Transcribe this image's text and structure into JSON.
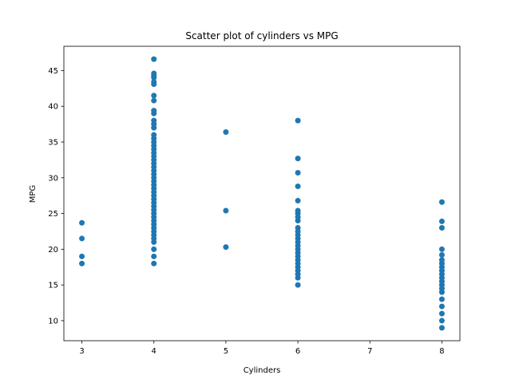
{
  "chart_data": {
    "type": "scatter",
    "title": "Scatter plot of cylinders vs MPG",
    "xlabel": "Cylinders",
    "ylabel": "MPG",
    "xlim": [
      2.75,
      8.25
    ],
    "ylim": [
      7.2,
      48.4
    ],
    "xticks": [
      3,
      4,
      5,
      6,
      7,
      8
    ],
    "yticks": [
      10,
      15,
      20,
      25,
      30,
      35,
      40,
      45
    ],
    "grid": false,
    "marker_color": "#1f77b4",
    "series": [
      {
        "points": [
          [
            3,
            18.0
          ],
          [
            3,
            19.0
          ],
          [
            3,
            21.5
          ],
          [
            3,
            23.7
          ],
          [
            4,
            18.0
          ],
          [
            4,
            19.0
          ],
          [
            4,
            20.0
          ],
          [
            4,
            21.0
          ],
          [
            4,
            21.5
          ],
          [
            4,
            22.0
          ],
          [
            4,
            22.5
          ],
          [
            4,
            23.0
          ],
          [
            4,
            23.5
          ],
          [
            4,
            24.0
          ],
          [
            4,
            24.5
          ],
          [
            4,
            25.0
          ],
          [
            4,
            25.5
          ],
          [
            4,
            26.0
          ],
          [
            4,
            26.5
          ],
          [
            4,
            27.0
          ],
          [
            4,
            27.5
          ],
          [
            4,
            28.0
          ],
          [
            4,
            28.5
          ],
          [
            4,
            29.0
          ],
          [
            4,
            29.5
          ],
          [
            4,
            30.0
          ],
          [
            4,
            30.5
          ],
          [
            4,
            31.0
          ],
          [
            4,
            31.5
          ],
          [
            4,
            32.0
          ],
          [
            4,
            32.5
          ],
          [
            4,
            33.0
          ],
          [
            4,
            33.5
          ],
          [
            4,
            34.0
          ],
          [
            4,
            34.5
          ],
          [
            4,
            35.0
          ],
          [
            4,
            35.5
          ],
          [
            4,
            36.0
          ],
          [
            4,
            37.0
          ],
          [
            4,
            37.5
          ],
          [
            4,
            38.0
          ],
          [
            4,
            39.0
          ],
          [
            4,
            39.4
          ],
          [
            4,
            40.8
          ],
          [
            4,
            41.5
          ],
          [
            4,
            43.1
          ],
          [
            4,
            43.4
          ],
          [
            4,
            44.0
          ],
          [
            4,
            44.3
          ],
          [
            4,
            44.6
          ],
          [
            4,
            46.6
          ],
          [
            5,
            20.3
          ],
          [
            5,
            25.4
          ],
          [
            5,
            36.4
          ],
          [
            6,
            15.0
          ],
          [
            6,
            16.0
          ],
          [
            6,
            16.5
          ],
          [
            6,
            17.0
          ],
          [
            6,
            17.5
          ],
          [
            6,
            18.0
          ],
          [
            6,
            18.5
          ],
          [
            6,
            19.0
          ],
          [
            6,
            19.5
          ],
          [
            6,
            20.0
          ],
          [
            6,
            20.5
          ],
          [
            6,
            21.0
          ],
          [
            6,
            21.5
          ],
          [
            6,
            22.0
          ],
          [
            6,
            22.5
          ],
          [
            6,
            23.0
          ],
          [
            6,
            24.0
          ],
          [
            6,
            24.5
          ],
          [
            6,
            25.0
          ],
          [
            6,
            25.4
          ],
          [
            6,
            26.8
          ],
          [
            6,
            28.8
          ],
          [
            6,
            30.7
          ],
          [
            6,
            32.7
          ],
          [
            6,
            38.0
          ],
          [
            8,
            9.0
          ],
          [
            8,
            10.0
          ],
          [
            8,
            11.0
          ],
          [
            8,
            12.0
          ],
          [
            8,
            13.0
          ],
          [
            8,
            14.0
          ],
          [
            8,
            14.5
          ],
          [
            8,
            15.0
          ],
          [
            8,
            15.5
          ],
          [
            8,
            16.0
          ],
          [
            8,
            16.5
          ],
          [
            8,
            17.0
          ],
          [
            8,
            17.5
          ],
          [
            8,
            18.0
          ],
          [
            8,
            18.5
          ],
          [
            8,
            19.2
          ],
          [
            8,
            20.0
          ],
          [
            8,
            23.0
          ],
          [
            8,
            23.9
          ],
          [
            8,
            26.6
          ]
        ]
      }
    ]
  }
}
